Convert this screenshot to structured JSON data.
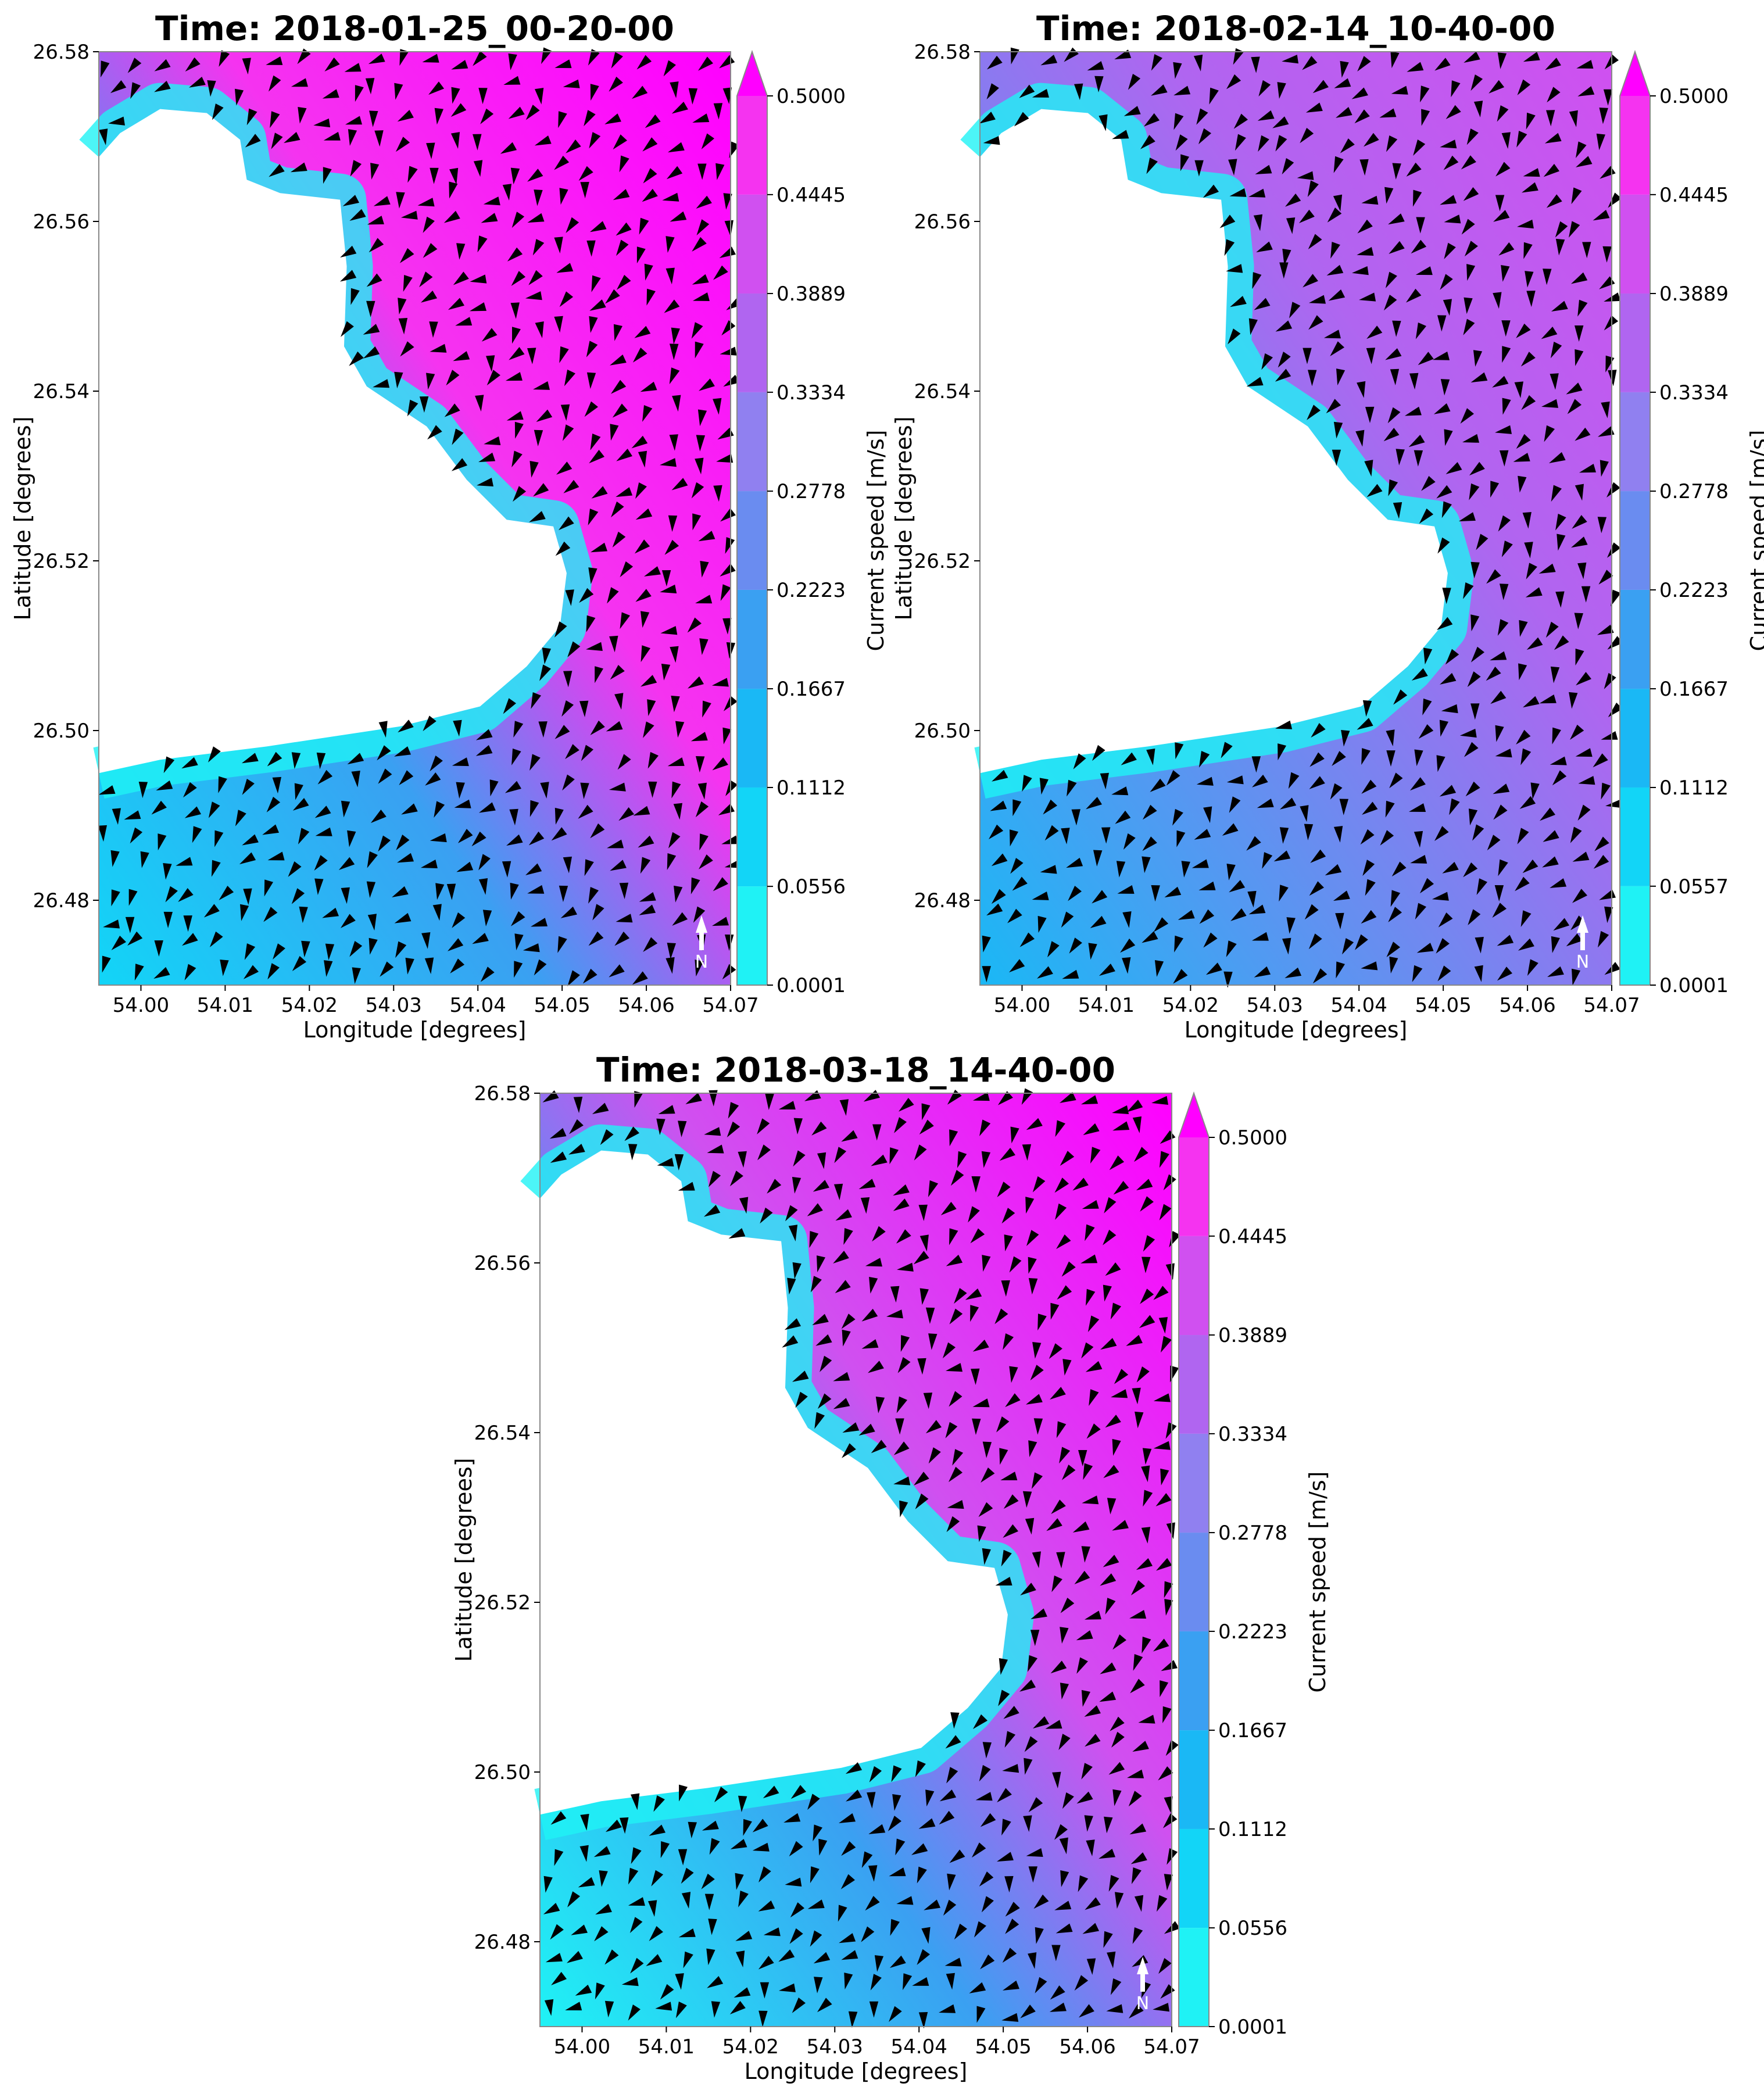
{
  "chart_data": [
    {
      "type": "contour",
      "title": "Time: 2018-01-25_00-20-00",
      "x_label": "Longitude [degrees]",
      "y_label": "Latitude [degrees]",
      "xlim": [
        53.995,
        54.07
      ],
      "ylim": [
        26.47,
        26.58
      ],
      "xticks": [
        {
          "value": 54.0,
          "label": "54.00"
        },
        54.01,
        54.02,
        54.03,
        54.04,
        54.05,
        54.06,
        54.07
      ],
      "yticks": [
        26.48,
        {
          "value": 26.5,
          "label": "26.50"
        },
        26.52,
        26.54,
        26.56,
        26.58
      ],
      "colorbar_label": "Current speed [m/s]",
      "colorbar_ticks": [
        0.0001,
        0.0556,
        0.1112,
        0.1667,
        0.2223,
        0.2778,
        0.3334,
        0.3889,
        0.4445,
        {
          "value": 0.5,
          "label": "0.5000"
        }
      ],
      "colors": [
        "#1ff2f5",
        "#12d5f7",
        "#1ab8f5",
        "#3aa0f2",
        "#6a8cf0",
        "#9080f0",
        "#b065f0",
        "#d050f0",
        "#f533f0",
        "#ff00ff"
      ],
      "north_label": "N"
    },
    {
      "type": "contour",
      "title": "Time: 2018-02-14_10-40-00",
      "x_label": "Longitude [degrees]",
      "y_label": "Latitude [degrees]",
      "xlim": [
        53.995,
        54.07
      ],
      "ylim": [
        26.47,
        26.58
      ],
      "xticks": [
        {
          "value": 54.0,
          "label": "54.00"
        },
        54.01,
        54.02,
        54.03,
        54.04,
        54.05,
        54.06,
        54.07
      ],
      "yticks": [
        26.48,
        {
          "value": 26.5,
          "label": "26.50"
        },
        26.52,
        26.54,
        26.56,
        26.58
      ],
      "colorbar_label": "Current speed [m/s]",
      "colorbar_ticks": [
        0.0001,
        0.0557,
        0.1112,
        0.1667,
        0.2223,
        0.2778,
        0.3334,
        0.3889,
        0.4445,
        {
          "value": 0.5,
          "label": "0.5000"
        }
      ],
      "colors": [
        "#1ff2f5",
        "#12d5f7",
        "#1ab8f5",
        "#3aa0f2",
        "#6a8cf0",
        "#9080f0",
        "#b065f0",
        "#d050f0",
        "#f533f0",
        "#ff00ff"
      ],
      "north_label": "N"
    },
    {
      "type": "contour",
      "title": "Time: 2018-03-18_14-40-00",
      "x_label": "Longitude [degrees]",
      "y_label": "Latitude [degrees]",
      "xlim": [
        53.995,
        54.07
      ],
      "ylim": [
        26.47,
        26.58
      ],
      "xticks": [
        {
          "value": 54.0,
          "label": "54.00"
        },
        54.01,
        54.02,
        54.03,
        54.04,
        54.05,
        54.06,
        54.07
      ],
      "yticks": [
        26.48,
        {
          "value": 26.5,
          "label": "26.50"
        },
        26.52,
        26.54,
        26.56,
        26.58
      ],
      "colorbar_label": "Current speed [m/s]",
      "colorbar_ticks": [
        0.0001,
        0.0556,
        0.1112,
        0.1667,
        0.2223,
        0.2778,
        0.3334,
        0.3889,
        0.4445,
        {
          "value": 0.5,
          "label": "0.5000"
        }
      ],
      "colors": [
        "#1ff2f5",
        "#12d5f7",
        "#1ab8f5",
        "#3aa0f2",
        "#6a8cf0",
        "#9080f0",
        "#b065f0",
        "#d050f0",
        "#f533f0",
        "#ff00ff"
      ],
      "north_label": "N"
    }
  ]
}
